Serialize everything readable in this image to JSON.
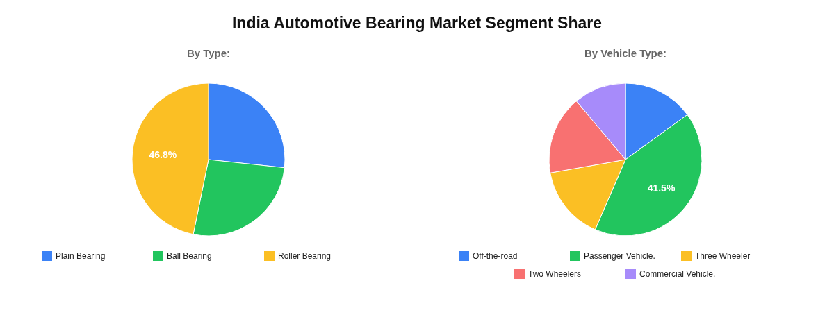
{
  "chart_data": [
    {
      "type": "pie",
      "title": "India Automotive Bearing Market Segment Share",
      "subtitle": "By Type:",
      "categories": [
        "Plain Bearing",
        "Ball Bearing",
        "Roller Bearing"
      ],
      "values": [
        26.7,
        26.5,
        46.8
      ],
      "colors": [
        "#3b82f6",
        "#22c55e",
        "#fbbf24"
      ],
      "value_labels": [
        null,
        null,
        "46.8%"
      ],
      "legend": "bottom"
    },
    {
      "type": "pie",
      "subtitle": "By Vehicle Type:",
      "categories": [
        "Off-the-road",
        "Passenger Vehicle.",
        "Three Wheeler",
        "Two Wheelers",
        "Commercial Vehicle."
      ],
      "values": [
        15,
        41.5,
        15.7,
        16.7,
        11.1
      ],
      "colors": [
        "#3b82f6",
        "#22c55e",
        "#fbbf24",
        "#f87171",
        "#a78bfa"
      ],
      "value_labels": [
        null,
        "41.5%",
        null,
        null,
        null
      ],
      "legend": "bottom"
    }
  ]
}
